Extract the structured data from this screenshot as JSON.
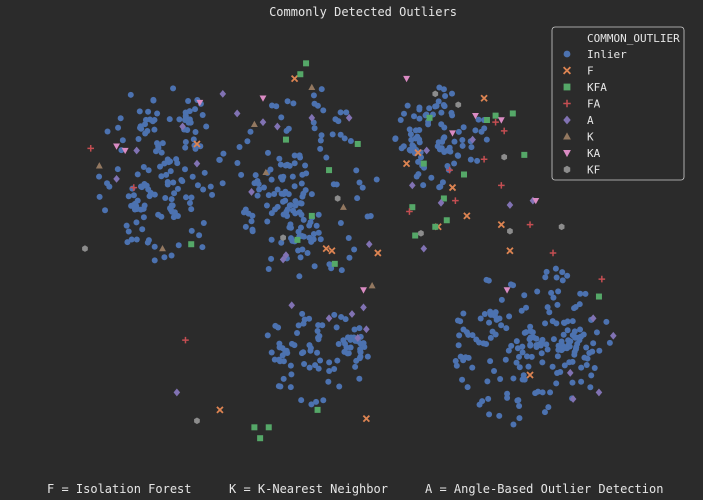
{
  "chart_data": {
    "type": "scatter",
    "title": "Commonly Detected Outliers",
    "xlabel": "",
    "ylabel": "",
    "xlim": [
      -1.05,
      1.05
    ],
    "ylim": [
      -0.95,
      1.0
    ],
    "grid": false,
    "legend": {
      "title": "COMMON_OUTLIER",
      "placement": "top-right"
    },
    "series": [
      {
        "name": "Inlier",
        "marker": "circle",
        "color": "#4c72b0",
        "clusters": [
          {
            "cx": -0.7,
            "cy": 0.36,
            "rx": 0.23,
            "ry": 0.42,
            "count": 150
          },
          {
            "cx": -0.2,
            "cy": 0.32,
            "rx": 0.26,
            "ry": 0.46,
            "count": 150
          },
          {
            "cx": -0.15,
            "cy": -0.47,
            "rx": 0.2,
            "ry": 0.25,
            "count": 90
          },
          {
            "cx": 0.27,
            "cy": 0.53,
            "rx": 0.16,
            "ry": 0.24,
            "count": 90
          },
          {
            "cx": 0.58,
            "cy": -0.43,
            "rx": 0.28,
            "ry": 0.38,
            "count": 190
          }
        ]
      },
      {
        "name": "F",
        "marker": "x",
        "color": "#dd8452",
        "x": [
          -0.58,
          -0.24,
          -0.13,
          -0.11,
          0.01,
          0.05,
          0.15,
          0.19,
          0.26,
          0.31,
          0.36,
          0.42,
          0.48,
          0.51,
          0.58,
          -0.5
        ],
        "y": [
          0.5,
          0.8,
          0.02,
          0.01,
          -0.76,
          0.0,
          0.41,
          0.46,
          0.12,
          0.3,
          0.17,
          0.71,
          0.13,
          0.01,
          -0.56,
          -0.72
        ]
      },
      {
        "name": "KFA",
        "marker": "square",
        "color": "#55a868",
        "x": [
          -0.6,
          -0.38,
          -0.27,
          -0.23,
          -0.18,
          -0.12,
          -0.02,
          -0.16,
          0.17,
          0.18,
          0.21,
          0.23,
          0.25,
          0.29,
          0.35,
          0.43,
          0.46,
          0.52,
          0.56,
          -0.1,
          -0.36,
          -0.33
        ],
        "y": [
          0.04,
          -0.8,
          0.52,
          0.06,
          0.17,
          0.38,
          0.5,
          -0.72,
          0.21,
          0.08,
          0.41,
          0.62,
          0.12,
          0.15,
          0.36,
          0.61,
          0.63,
          0.64,
          0.45,
          -0.05,
          -0.85,
          -0.8
        ],
        "extra_x": [
          -0.2,
          -0.22,
          0.28,
          0.82
        ],
        "extra_y": [
          0.87,
          0.82,
          0.25,
          -0.2
        ]
      },
      {
        "name": "FA",
        "marker": "plus",
        "color": "#c44e52",
        "x": [
          -0.95,
          -0.8,
          -0.62,
          0.16,
          0.3,
          0.32,
          0.42,
          0.48,
          0.58,
          0.66,
          0.83
        ],
        "y": [
          0.48,
          0.3,
          -0.4,
          0.19,
          0.38,
          0.24,
          0.43,
          0.31,
          0.13,
          0.0,
          -0.12
        ],
        "extra_x": [
          0.46,
          0.49
        ],
        "extra_y": [
          0.6,
          0.56
        ]
      },
      {
        "name": "A",
        "marker": "diamond",
        "color": "#8172b3",
        "x": [
          -0.86,
          -0.79,
          -0.63,
          -0.58,
          -0.49,
          -0.44,
          -0.35,
          -0.27,
          -0.12,
          -0.04,
          0.02,
          -0.05,
          0.17,
          0.22,
          0.27,
          0.38,
          0.51,
          0.72,
          0.87,
          0.8,
          0.82,
          0.73,
          0.59,
          -0.39,
          -0.18,
          0.21
        ],
        "y": [
          0.34,
          0.47,
          0.58,
          0.41,
          0.73,
          0.64,
          0.6,
          -0.01,
          -0.3,
          -0.28,
          0.04,
          0.62,
          0.31,
          0.47,
          0.23,
          0.52,
          0.22,
          -0.55,
          -0.38,
          -0.3,
          -0.64,
          -0.67,
          0.24,
          0.28,
          0.62,
          0.02
        ],
        "extra_x": [
          -0.3,
          -0.02,
          0.01,
          0.0,
          -0.65,
          -0.25,
          -0.28
        ],
        "extra_y": [
          0.58,
          -0.39,
          -0.35,
          -0.25,
          -0.64,
          -0.24,
          -0.03
        ]
      },
      {
        "name": "K",
        "marker": "triangle-up",
        "color": "#937860",
        "x": [
          -0.92,
          -0.7,
          -0.34,
          -0.07,
          0.03,
          -0.38
        ],
        "y": [
          0.4,
          0.02,
          0.37,
          0.21,
          -0.15,
          0.59
        ],
        "extra_x": [
          -0.18
        ],
        "extra_y": [
          0.76
        ]
      },
      {
        "name": "KA",
        "marker": "triangle-down",
        "color": "#da8bc3",
        "x": [
          -0.86,
          -0.83,
          -0.57,
          -0.35,
          0.0,
          0.15,
          0.39,
          0.48,
          0.5,
          0.6
        ],
        "y": [
          0.49,
          0.47,
          0.69,
          0.71,
          -0.17,
          0.8,
          0.63,
          0.61,
          -0.17,
          0.24
        ],
        "extra_x": [
          0.31
        ],
        "extra_y": [
          0.55
        ]
      },
      {
        "name": "KF",
        "marker": "hexagon",
        "color": "#8c8c8c",
        "x": [
          -0.97,
          -0.58,
          -0.09,
          0.2,
          0.25,
          0.33,
          0.69,
          0.51,
          0.49
        ],
        "y": [
          0.02,
          -0.77,
          0.25,
          0.09,
          0.73,
          0.68,
          0.12,
          0.1,
          0.44
        ],
        "extra_x": [
          -0.28
        ],
        "extra_y": [
          0.07
        ]
      }
    ],
    "annotations": [
      "F = Isolation Forest",
      "K = K-Nearest Neighbor",
      "A = Angle-Based Outlier Detection"
    ]
  }
}
